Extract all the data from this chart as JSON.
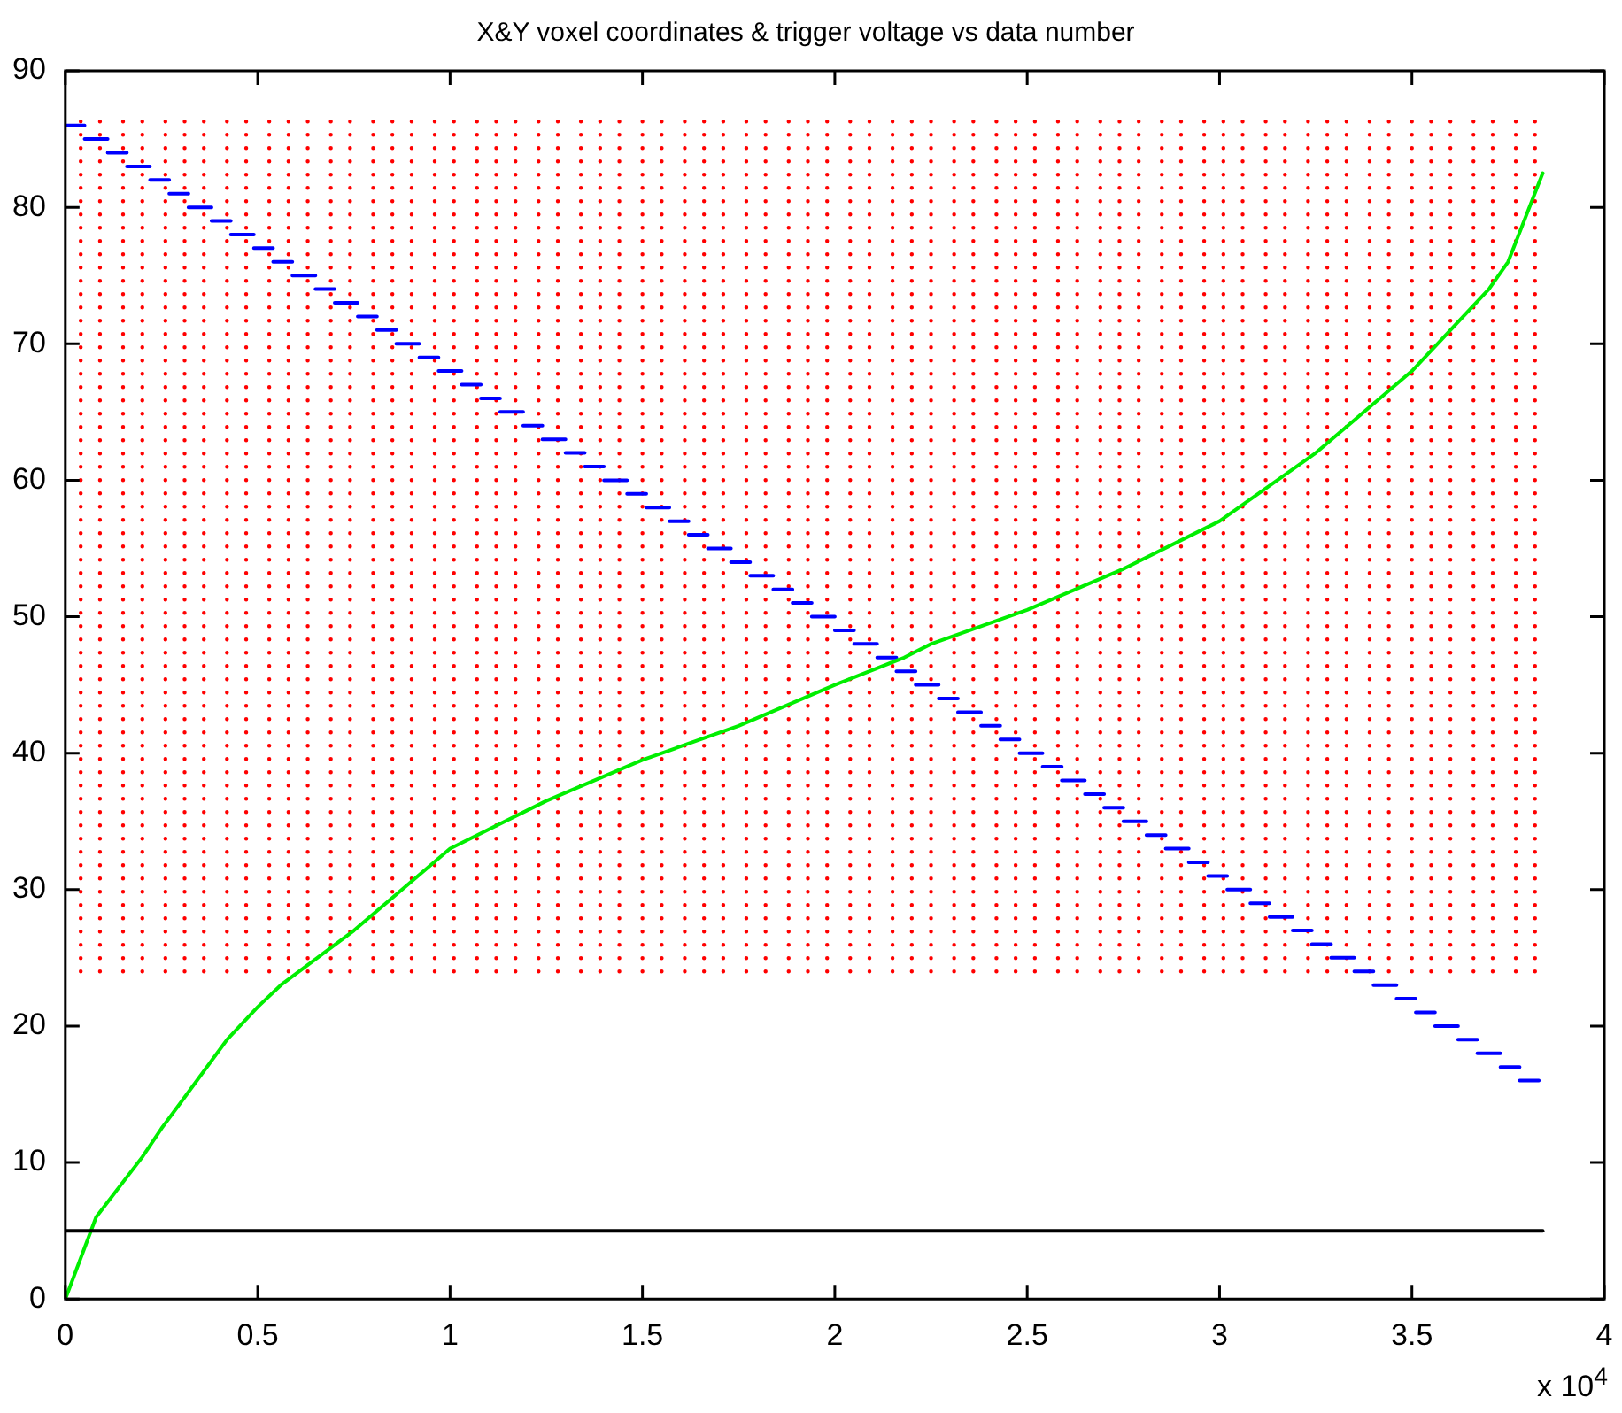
{
  "chart_data": {
    "type": "line",
    "title": "X&Y voxel coordinates & trigger voltage vs data number",
    "xlim": [
      0,
      4
    ],
    "xticks": [
      0,
      0.5,
      1,
      1.5,
      2,
      2.5,
      3,
      3.5,
      4
    ],
    "ylim": [
      0,
      90
    ],
    "yticks": [
      0,
      10,
      20,
      30,
      40,
      50,
      60,
      70,
      80,
      90
    ],
    "annotations": [
      "x 10$^{4}$"
    ],
    "legend": false,
    "series": [
      {
        "color": "#ff0000",
        "line_style": "dotted",
        "x": [
          0.04,
          0.04,
          null,
          0.09,
          0.09,
          null,
          0.15,
          0.15,
          null,
          0.2,
          0.2,
          null,
          0.26,
          0.26,
          null,
          0.31,
          0.31,
          null,
          0.36,
          0.36,
          null,
          0.42,
          0.42,
          null,
          0.47,
          0.47,
          null,
          0.53,
          0.53,
          null,
          0.58,
          0.58,
          null,
          0.63,
          0.63,
          null,
          0.69,
          0.69,
          null,
          0.74,
          0.74,
          null,
          0.8,
          0.8,
          null,
          0.85,
          0.85,
          null,
          0.9,
          0.9,
          null,
          0.96,
          0.96,
          null,
          1.01,
          1.01,
          null,
          1.07,
          1.07,
          null,
          1.12,
          1.12,
          null,
          1.17,
          1.17,
          null,
          1.23,
          1.23,
          null,
          1.28,
          1.28,
          null,
          1.34,
          1.34,
          null,
          1.39,
          1.39,
          null,
          1.44,
          1.44,
          null,
          1.5,
          1.5,
          null,
          1.55,
          1.55,
          null,
          1.61,
          1.61,
          null,
          1.66,
          1.66,
          null,
          1.71,
          1.71,
          null,
          1.77,
          1.77,
          null,
          1.82,
          1.82,
          null,
          1.88,
          1.88,
          null,
          1.93,
          1.93,
          null,
          1.98,
          1.98,
          null,
          2.04,
          2.04,
          null,
          2.09,
          2.09,
          null,
          2.15,
          2.15,
          null,
          2.2,
          2.2,
          null,
          2.25,
          2.25,
          null,
          2.31,
          2.31,
          null,
          2.36,
          2.36,
          null,
          2.42,
          2.42,
          null,
          2.47,
          2.47,
          null,
          2.52,
          2.52,
          null,
          2.58,
          2.58,
          null,
          2.63,
          2.63,
          null,
          2.69,
          2.69,
          null,
          2.74,
          2.74,
          null,
          2.79,
          2.79,
          null,
          2.85,
          2.85,
          null,
          2.9,
          2.9,
          null,
          2.96,
          2.96,
          null,
          3.01,
          3.01,
          null,
          3.06,
          3.06,
          null,
          3.12,
          3.12,
          null,
          3.17,
          3.17,
          null,
          3.23,
          3.23,
          null,
          3.28,
          3.28,
          null,
          3.33,
          3.33,
          null,
          3.39,
          3.39,
          null,
          3.44,
          3.44,
          null,
          3.5,
          3.5,
          null,
          3.55,
          3.55,
          null,
          3.6,
          3.6,
          null,
          3.66,
          3.66,
          null,
          3.71,
          3.71,
          null,
          3.77,
          3.77,
          null,
          3.82,
          3.82,
          null
        ],
        "values": [
          24,
          87,
          null,
          24,
          87,
          null,
          24,
          87,
          null,
          24,
          87,
          null,
          24,
          87,
          null,
          24,
          87,
          null,
          24,
          87,
          null,
          24,
          87,
          null,
          24,
          87,
          null,
          24,
          87,
          null,
          24,
          87,
          null,
          24,
          87,
          null,
          24,
          87,
          null,
          24,
          87,
          null,
          24,
          87,
          null,
          24,
          87,
          null,
          24,
          87,
          null,
          24,
          87,
          null,
          24,
          87,
          null,
          24,
          87,
          null,
          24,
          87,
          null,
          24,
          87,
          null,
          24,
          87,
          null,
          24,
          87,
          null,
          24,
          87,
          null,
          24,
          87,
          null,
          24,
          87,
          null,
          24,
          87,
          null,
          24,
          87,
          null,
          24,
          87,
          null,
          24,
          87,
          null,
          24,
          87,
          null,
          24,
          87,
          null,
          24,
          87,
          null,
          24,
          87,
          null,
          24,
          87,
          null,
          24,
          87,
          null,
          24,
          87,
          null,
          24,
          87,
          null,
          24,
          87,
          null,
          24,
          87,
          null,
          24,
          87,
          null,
          24,
          87,
          null,
          24,
          87,
          null,
          24,
          87,
          null,
          24,
          87,
          null,
          24,
          87,
          null,
          24,
          87,
          null,
          24,
          87,
          null,
          24,
          87,
          null,
          24,
          87,
          null,
          24,
          87,
          null,
          24,
          87,
          null,
          24,
          87,
          null,
          24,
          87,
          null,
          24,
          87,
          null,
          24,
          87,
          null,
          24,
          87,
          null,
          24,
          87,
          null,
          24,
          87,
          null,
          24,
          87,
          null,
          24,
          87,
          null,
          24,
          87,
          null,
          24,
          87,
          null,
          24,
          87,
          null,
          24,
          87,
          null,
          24,
          87,
          null,
          24,
          87,
          null,
          24,
          87,
          null,
          24,
          87,
          null,
          24,
          87,
          null
        ]
      },
      {
        "color": "#0000ff",
        "line_style": "solid",
        "x": [
          0,
          0.05,
          null,
          0.05,
          0.11,
          null,
          0.11,
          0.16,
          null,
          0.16,
          0.22,
          null,
          0.22,
          0.27,
          null,
          0.27,
          0.32,
          null,
          0.32,
          0.38,
          null,
          0.38,
          0.43,
          null,
          0.43,
          0.49,
          null,
          0.49,
          0.54,
          null,
          0.54,
          0.59,
          null,
          0.59,
          0.65,
          null,
          0.65,
          0.7,
          null,
          0.7,
          0.76,
          null,
          0.76,
          0.81,
          null,
          0.81,
          0.86,
          null,
          0.86,
          0.92,
          null,
          0.92,
          0.97,
          null,
          0.97,
          1.03,
          null,
          1.03,
          1.08,
          null,
          1.08,
          1.13,
          null,
          1.13,
          1.19,
          null,
          1.19,
          1.24,
          null,
          1.24,
          1.3,
          null,
          1.3,
          1.35,
          null,
          1.35,
          1.4,
          null,
          1.4,
          1.46,
          null,
          1.46,
          1.51,
          null,
          1.51,
          1.57,
          null,
          1.57,
          1.62,
          null,
          1.62,
          1.67,
          null,
          1.67,
          1.73,
          null,
          1.73,
          1.78,
          null,
          1.78,
          1.84,
          null,
          1.84,
          1.89,
          null,
          1.89,
          1.94,
          null,
          1.94,
          2,
          null,
          2,
          2.05,
          null,
          2.05,
          2.11,
          null,
          2.11,
          2.16,
          null,
          2.16,
          2.21,
          null,
          2.21,
          2.27,
          null,
          2.27,
          2.32,
          null,
          2.32,
          2.38,
          null,
          2.38,
          2.43,
          null,
          2.43,
          2.48,
          null,
          2.48,
          2.54,
          null,
          2.54,
          2.59,
          null,
          2.59,
          2.65,
          null,
          2.65,
          2.7,
          null,
          2.7,
          2.75,
          null,
          2.75,
          2.81,
          null,
          2.81,
          2.86,
          null,
          2.86,
          2.92,
          null,
          2.92,
          2.97,
          null,
          2.97,
          3.02,
          null,
          3.02,
          3.08,
          null,
          3.08,
          3.13,
          null,
          3.13,
          3.19,
          null,
          3.19,
          3.24,
          null,
          3.24,
          3.29,
          null,
          3.29,
          3.35,
          null,
          3.35,
          3.4,
          null,
          3.4,
          3.46,
          null,
          3.46,
          3.51,
          null,
          3.51,
          3.56,
          null,
          3.56,
          3.62,
          null,
          3.62,
          3.67,
          null,
          3.67,
          3.73,
          null,
          3.73,
          3.78,
          null,
          3.78,
          3.83
        ],
        "values": [
          86,
          86,
          null,
          85,
          85,
          null,
          84,
          84,
          null,
          83,
          83,
          null,
          82,
          82,
          null,
          81,
          81,
          null,
          80,
          80,
          null,
          79,
          79,
          null,
          78,
          78,
          null,
          77,
          77,
          null,
          76,
          76,
          null,
          75,
          75,
          null,
          74,
          74,
          null,
          73,
          73,
          null,
          72,
          72,
          null,
          71,
          71,
          null,
          70,
          70,
          null,
          69,
          69,
          null,
          68,
          68,
          null,
          67,
          67,
          null,
          66,
          66,
          null,
          65,
          65,
          null,
          64,
          64,
          null,
          63,
          63,
          null,
          62,
          62,
          null,
          61,
          61,
          null,
          60,
          60,
          null,
          59,
          59,
          null,
          58,
          58,
          null,
          57,
          57,
          null,
          56,
          56,
          null,
          55,
          55,
          null,
          54,
          54,
          null,
          53,
          53,
          null,
          52,
          52,
          null,
          51,
          51,
          null,
          50,
          50,
          null,
          49,
          49,
          null,
          48,
          48,
          null,
          47,
          47,
          null,
          46,
          46,
          null,
          45,
          45,
          null,
          44,
          44,
          null,
          43,
          43,
          null,
          42,
          42,
          null,
          41,
          41,
          null,
          40,
          40,
          null,
          39,
          39,
          null,
          38,
          38,
          null,
          37,
          37,
          null,
          36,
          36,
          null,
          35,
          35,
          null,
          34,
          34,
          null,
          33,
          33,
          null,
          32,
          32,
          null,
          31,
          31,
          null,
          30,
          30,
          null,
          29,
          29,
          null,
          28,
          28,
          null,
          27,
          27,
          null,
          26,
          26,
          null,
          25,
          25,
          null,
          24,
          24,
          null,
          23,
          23,
          null,
          22,
          22,
          null,
          21,
          21,
          null,
          20,
          20,
          null,
          19,
          19,
          null,
          18,
          18,
          null,
          17,
          17,
          null,
          16,
          16
        ]
      },
      {
        "color": "#00ee00",
        "line_style": "solid",
        "x": [
          0,
          0.08,
          0.2,
          0.25,
          0.3,
          0.42,
          0.5,
          0.56,
          0.75,
          1,
          1.25,
          1.5,
          1.75,
          2,
          2.18,
          2.25,
          2.5,
          2.75,
          3,
          3.25,
          3.5,
          3.6,
          3.7,
          3.75,
          3.84
        ],
        "values": [
          0,
          6,
          10.4,
          12.5,
          14.4,
          19,
          21.4,
          23,
          27,
          33,
          36.5,
          39.5,
          42,
          45,
          47,
          48,
          50.5,
          53.5,
          57,
          62,
          68,
          71,
          74,
          76,
          82.5
        ]
      },
      {
        "color": "#000000",
        "line_style": "solid",
        "x": [
          0,
          3.84
        ],
        "values": [
          5,
          5
        ]
      }
    ]
  }
}
